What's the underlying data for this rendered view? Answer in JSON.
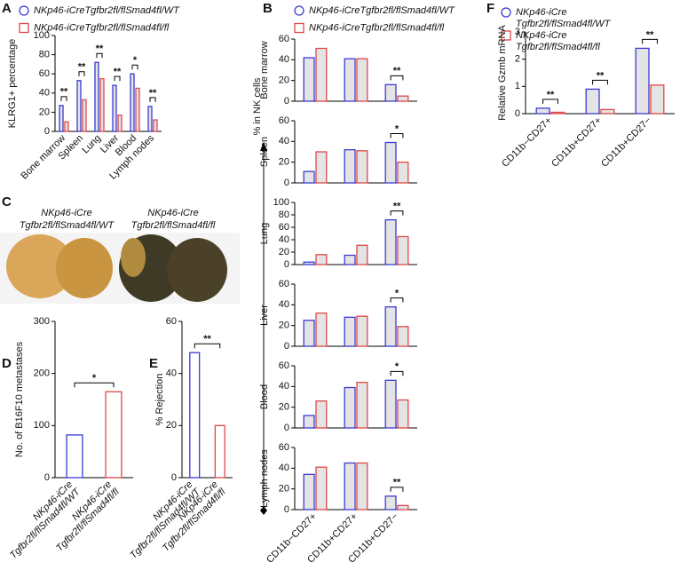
{
  "chart_data": [
    {
      "type": "bar",
      "panel": "A",
      "ylabel": "KLRG1+ percentage",
      "categories": [
        "Bone marrow",
        "Spleen",
        "Lung",
        "Liver",
        "Blood",
        "Lymph nodes"
      ],
      "series": [
        {
          "name": "NKp46-iCreTgfbr2fl/flSmad4fl/WT",
          "color": "#3a3ad6",
          "values": [
            27,
            53,
            72,
            48,
            60,
            26
          ]
        },
        {
          "name": "NKp46-iCreTgfbr2fl/flSmad4fl/fl",
          "color": "#e04848",
          "values": [
            10,
            33,
            55,
            17,
            45,
            12
          ]
        }
      ],
      "bar_fill": "#e4e4e4",
      "ylim": [
        0,
        100
      ],
      "yticks": [
        0,
        20,
        40,
        60,
        80,
        100
      ],
      "significance": [
        "**",
        "**",
        "**",
        "**",
        "*",
        "**"
      ]
    },
    {
      "type": "bar",
      "panel": "B",
      "ylabel": "% in NK cells",
      "categories": [
        "CD11b−CD27+",
        "CD11b+CD27+",
        "CD11b+CD27−"
      ],
      "series": [
        {
          "name": "NKp46-iCreTgfbr2fl/flSmad4fl/WT",
          "color": "#3a3ad6"
        },
        {
          "name": "NKp46-iCreTgfbr2fl/flSmad4fl/fl",
          "color": "#e04848"
        }
      ],
      "bar_fill": "#e4e4e4",
      "facets": [
        {
          "title": "Bone marrow",
          "ylim": [
            0,
            60
          ],
          "yticks": [
            0,
            20,
            40,
            60
          ],
          "series": [
            {
              "values": [
                42,
                41,
                16
              ]
            },
            {
              "values": [
                51,
                41,
                5
              ]
            }
          ],
          "significance": [
            null,
            null,
            "**"
          ]
        },
        {
          "title": "Spleen",
          "ylim": [
            0,
            60
          ],
          "yticks": [
            0,
            20,
            40,
            60
          ],
          "series": [
            {
              "values": [
                11,
                32,
                39
              ]
            },
            {
              "values": [
                30,
                31,
                20
              ]
            }
          ],
          "significance": [
            null,
            null,
            "*"
          ]
        },
        {
          "title": "Lung",
          "ylim": [
            0,
            100
          ],
          "yticks": [
            0,
            20,
            40,
            60,
            80,
            100
          ],
          "series": [
            {
              "values": [
                4,
                15,
                72
              ]
            },
            {
              "values": [
                16,
                31,
                45
              ]
            }
          ],
          "significance": [
            null,
            null,
            "**"
          ]
        },
        {
          "title": "Liver",
          "ylim": [
            0,
            60
          ],
          "yticks": [
            0,
            20,
            40,
            60
          ],
          "series": [
            {
              "values": [
                25,
                28,
                38
              ]
            },
            {
              "values": [
                32,
                29,
                19
              ]
            }
          ],
          "significance": [
            null,
            null,
            "*"
          ]
        },
        {
          "title": "Blood",
          "ylim": [
            0,
            60
          ],
          "yticks": [
            0,
            20,
            40,
            60
          ],
          "series": [
            {
              "values": [
                12,
                39,
                46
              ]
            },
            {
              "values": [
                26,
                44,
                27
              ]
            }
          ],
          "significance": [
            null,
            null,
            "*"
          ]
        },
        {
          "title": "Lymph nodes",
          "ylim": [
            0,
            60
          ],
          "yticks": [
            0,
            20,
            40,
            60
          ],
          "series": [
            {
              "values": [
                34,
                45,
                13
              ]
            },
            {
              "values": [
                41,
                45,
                4
              ]
            }
          ],
          "significance": [
            null,
            null,
            "**"
          ]
        }
      ]
    },
    {
      "type": "bar",
      "panel": "D",
      "ylabel": "No. of B16F10 metastases",
      "categories": [
        [
          "NKp46-iCre",
          "Tgfbr2fl/flSmad4fl/WT"
        ],
        [
          "NKp46-iCre",
          "Tgfbr2fl/flSmad4fl/fl"
        ]
      ],
      "values": [
        82,
        165
      ],
      "colors": [
        "#3a3ad6",
        "#e04848"
      ],
      "bar_fill": "#ffffff",
      "ylim": [
        0,
        300
      ],
      "yticks": [
        0,
        100,
        200,
        300
      ],
      "significance": [
        "*"
      ]
    },
    {
      "type": "bar",
      "panel": "E",
      "ylabel": "% Rejection",
      "categories": [
        [
          "NKp46-iCre",
          "Tgfbr2fl/flSmad4fl/WT"
        ],
        [
          "NKp46-iCre",
          "Tgfbr2fl/flSmad4fl/fl"
        ]
      ],
      "values": [
        48,
        20
      ],
      "colors": [
        "#3a3ad6",
        "#e04848"
      ],
      "bar_fill": "#ffffff",
      "ylim": [
        0,
        60
      ],
      "yticks": [
        0,
        20,
        40,
        60
      ],
      "significance": [
        "**"
      ]
    },
    {
      "type": "bar",
      "panel": "F",
      "ylabel": "Relative Gzmb mRNA",
      "categories": [
        "CD11b−CD27+",
        "CD11b+CD27+",
        "CD11b+CD27−"
      ],
      "series": [
        {
          "name": [
            "NKp46-iCre",
            "Tgfbr2fl/flSmad4fl/WT"
          ],
          "color": "#3a3ad6",
          "values": [
            0.2,
            0.9,
            2.4
          ]
        },
        {
          "name": [
            "NKp46-iCre",
            "Tgfbr2fl/flSmad4fl/fl"
          ],
          "color": "#e04848",
          "values": [
            0.05,
            0.15,
            1.05
          ]
        }
      ],
      "bar_fill": "#e4e4e4",
      "ylim": [
        0,
        3
      ],
      "yticks": [
        0,
        1,
        2,
        3
      ],
      "significance": [
        "**",
        "**",
        "**"
      ]
    }
  ],
  "image_panel": {
    "panel": "C",
    "labels": [
      [
        "NKp46-iCre",
        "Tgfbr2fl/flSmad4fl/WT"
      ],
      [
        "NKp46-iCre",
        "Tgfbr2fl/flSmad4fl/fl"
      ]
    ]
  }
}
